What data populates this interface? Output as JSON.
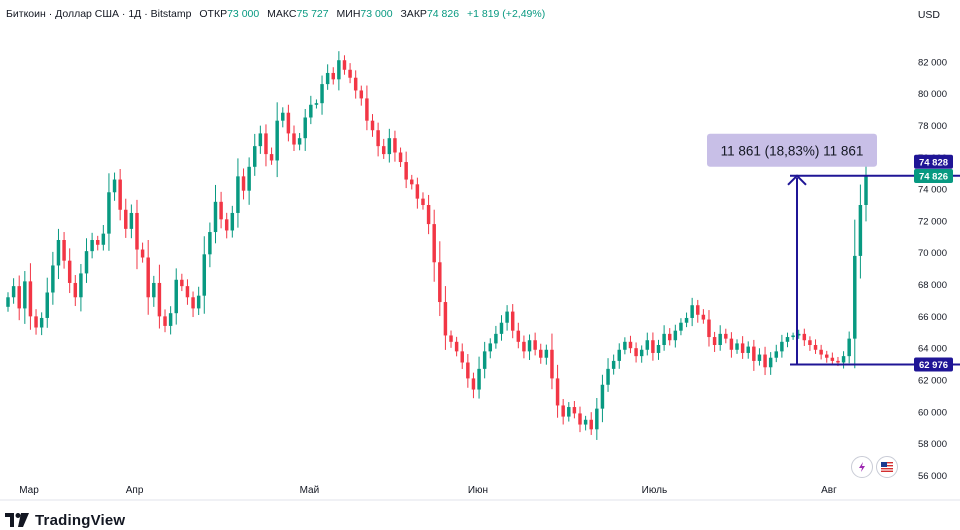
{
  "header": {
    "symbol": "Биткоин · Доллар США · 1Д · Bitstamp",
    "open_label": "ОТКР",
    "open_value": "73 000",
    "high_label": "МАКС",
    "high_value": "75 727",
    "low_label": "МИН",
    "low_value": "73 000",
    "close_label": "ЗАКР",
    "close_value": "74 826",
    "change": "+1 819 (+2,49%)"
  },
  "currency": "USD",
  "measure_label": "11 861 (18,83%) 11 861",
  "price_tags": {
    "upper": "74 828",
    "last": "74 826",
    "lower": "62 976"
  },
  "brand": "TradingView",
  "colors": {
    "up": "#089981",
    "down": "#f23645",
    "measure": "#1f1596",
    "measure_label_bg": "#c8bfe7",
    "last_tag": "#089981",
    "measure_tag": "#1f1596"
  },
  "icons": [
    "lightning-icon",
    "flag-icon",
    "tradingview-logo-icon"
  ],
  "chart_data": {
    "type": "candlestick",
    "title": "Биткоин · Доллар США · 1Д · Bitstamp",
    "x_ticks": [
      "Мар",
      "Апр",
      "Май",
      "Июн",
      "Июль",
      "Авг"
    ],
    "y_ticks": [
      "56 000",
      "58 000",
      "60 000",
      "62 000",
      "64 000",
      "66 000",
      "68 000",
      "70 000",
      "72 000",
      "74 000",
      "76 000",
      "78 000",
      "80 000",
      "82 000"
    ],
    "ylim": [
      55400,
      84000
    ],
    "grid": false,
    "measure": {
      "from": 62976,
      "to": 74837,
      "change": 11861,
      "percent": 18.83
    },
    "closes": [
      67200,
      67900,
      66500,
      68200,
      66000,
      65300,
      65900,
      67500,
      69200,
      70800,
      69500,
      68100,
      67200,
      68700,
      70100,
      70800,
      70500,
      71200,
      73800,
      74600,
      72700,
      71500,
      72500,
      70200,
      69700,
      67200,
      68100,
      66000,
      65400,
      66200,
      68300,
      67900,
      67200,
      66500,
      67300,
      69900,
      71300,
      73200,
      72100,
      71400,
      72500,
      74800,
      73900,
      75400,
      76700,
      77500,
      76200,
      75800,
      78300,
      78800,
      77500,
      76800,
      77200,
      78500,
      79300,
      79400,
      80600,
      81300,
      80900,
      82100,
      81500,
      81000,
      80200,
      79700,
      78300,
      77700,
      76700,
      76200,
      77200,
      76300,
      75700,
      74600,
      74300,
      73400,
      73000,
      71800,
      69400,
      66900,
      64800,
      64400,
      63800,
      63100,
      62100,
      61400,
      62700,
      63800,
      64300,
      64900,
      65600,
      66300,
      65100,
      64400,
      63800,
      64500,
      63900,
      63400,
      63900,
      62100,
      60400,
      59700,
      60300,
      59900,
      59200,
      59500,
      58900,
      60200,
      61700,
      62700,
      63200,
      63900,
      64400,
      64000,
      63500,
      63900,
      64500,
      63700,
      64200,
      64900,
      64500,
      65100,
      65600,
      65900,
      66700,
      66100,
      65800,
      64700,
      64200,
      64900,
      64600,
      63900,
      64300,
      63700,
      64100,
      63200,
      63600,
      62800,
      63400,
      63800,
      64400,
      64700,
      64800,
      64900,
      64500,
      64200,
      63900,
      63600,
      63400,
      63200,
      63100,
      63500,
      64600,
      69800,
      73000,
      74826
    ]
  }
}
